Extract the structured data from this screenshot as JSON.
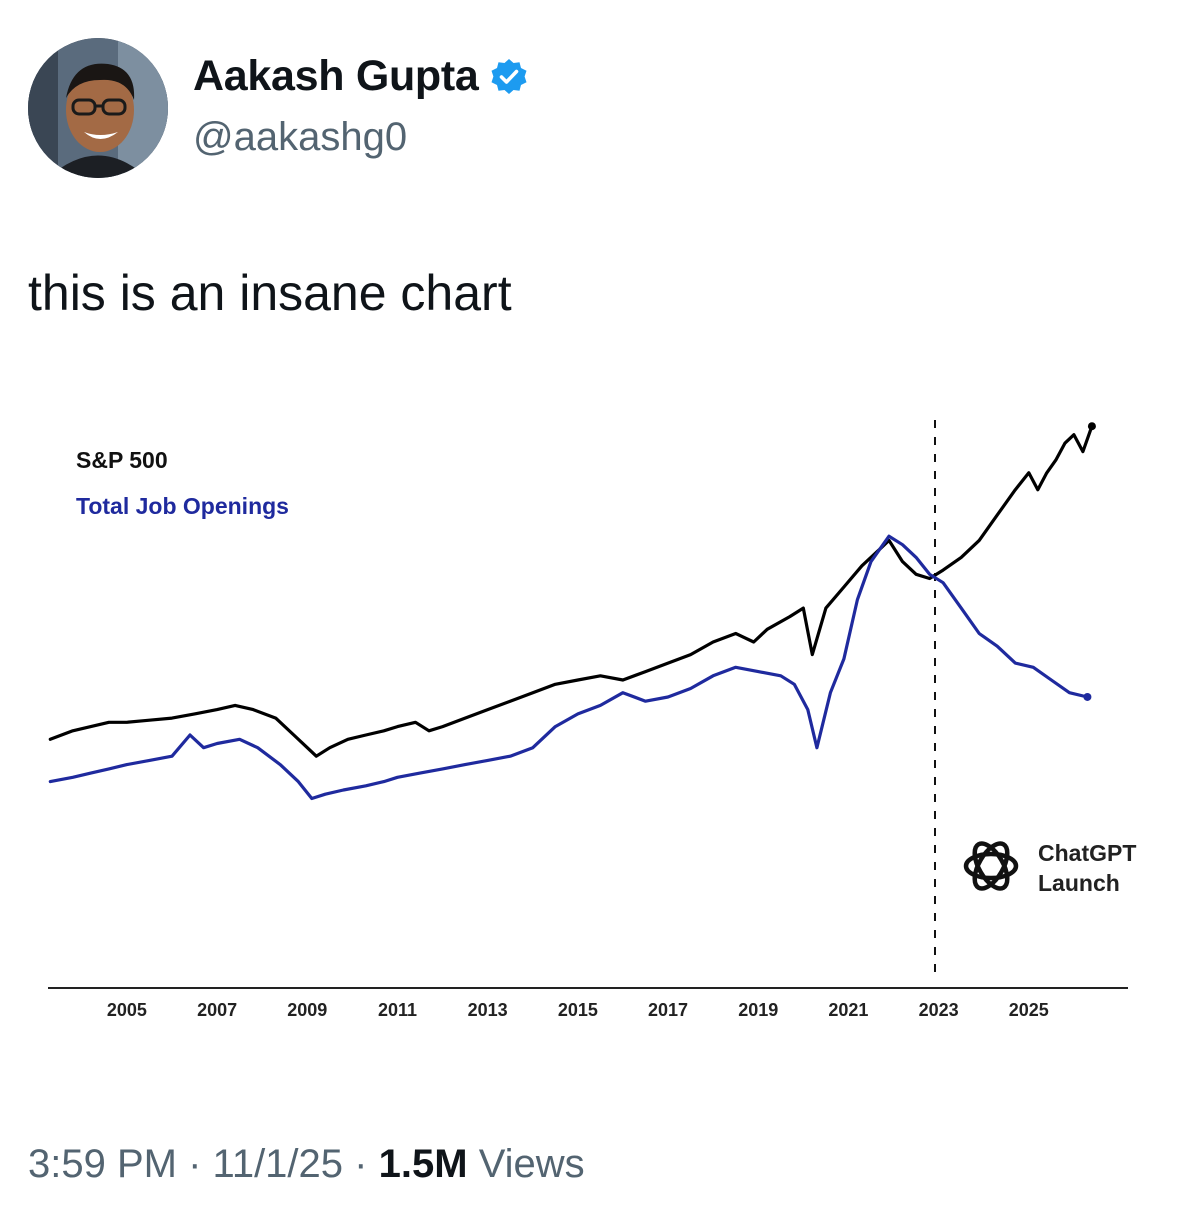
{
  "author": {
    "name": "Aakash Gupta",
    "handle": "@aakashg0",
    "verified": true,
    "verified_icon": "verified-badge-icon",
    "verified_color": "#1d9bf0"
  },
  "tweet": {
    "text": "this is an insane chart"
  },
  "meta": {
    "time": "3:59 PM",
    "separator": "·",
    "date": "11/1/25",
    "views_count": "1.5M",
    "views_label": "Views"
  },
  "annotation": {
    "icon": "openai-logo-icon",
    "line1": "ChatGPT",
    "line2": "Launch",
    "x": 2022.92
  },
  "chart_data": {
    "type": "line",
    "title": "",
    "xlabel": "",
    "ylabel": "",
    "xlim": [
      2003.25,
      2027.2
    ],
    "ylim": [
      0,
      100
    ],
    "x_ticks": [
      "2005",
      "2007",
      "2009",
      "2011",
      "2013",
      "2015",
      "2017",
      "2019",
      "2021",
      "2023",
      "2025"
    ],
    "grid": false,
    "legend_position": "top-left",
    "series": [
      {
        "name": "S&P 500",
        "color": "#000000",
        "points": [
          [
            2003.3,
            25
          ],
          [
            2003.8,
            27
          ],
          [
            2004.2,
            28
          ],
          [
            2004.6,
            29
          ],
          [
            2005.0,
            29
          ],
          [
            2005.5,
            29.5
          ],
          [
            2006.0,
            30
          ],
          [
            2006.5,
            31
          ],
          [
            2007.0,
            32
          ],
          [
            2007.4,
            33
          ],
          [
            2007.8,
            32
          ],
          [
            2008.3,
            30
          ],
          [
            2008.7,
            26
          ],
          [
            2009.0,
            23
          ],
          [
            2009.2,
            21
          ],
          [
            2009.5,
            23
          ],
          [
            2009.9,
            25
          ],
          [
            2010.3,
            26
          ],
          [
            2010.7,
            27
          ],
          [
            2011.0,
            28
          ],
          [
            2011.4,
            29
          ],
          [
            2011.7,
            27
          ],
          [
            2012.0,
            28
          ],
          [
            2012.5,
            30
          ],
          [
            2013.0,
            32
          ],
          [
            2013.5,
            34
          ],
          [
            2014.0,
            36
          ],
          [
            2014.5,
            38
          ],
          [
            2015.0,
            39
          ],
          [
            2015.5,
            40
          ],
          [
            2016.0,
            39
          ],
          [
            2016.5,
            41
          ],
          [
            2017.0,
            43
          ],
          [
            2017.5,
            45
          ],
          [
            2018.0,
            48
          ],
          [
            2018.5,
            50
          ],
          [
            2018.9,
            48
          ],
          [
            2019.2,
            51
          ],
          [
            2019.7,
            54
          ],
          [
            2020.0,
            56
          ],
          [
            2020.2,
            45
          ],
          [
            2020.5,
            56
          ],
          [
            2020.9,
            61
          ],
          [
            2021.3,
            66
          ],
          [
            2021.7,
            70
          ],
          [
            2021.9,
            72
          ],
          [
            2022.2,
            67
          ],
          [
            2022.5,
            64
          ],
          [
            2022.8,
            63
          ],
          [
            2023.1,
            65
          ],
          [
            2023.5,
            68
          ],
          [
            2023.9,
            72
          ],
          [
            2024.3,
            78
          ],
          [
            2024.7,
            84
          ],
          [
            2025.0,
            88
          ],
          [
            2025.2,
            84
          ],
          [
            2025.4,
            88
          ],
          [
            2025.6,
            91
          ],
          [
            2025.8,
            95
          ],
          [
            2026.0,
            97
          ],
          [
            2026.2,
            93
          ],
          [
            2026.4,
            99
          ]
        ]
      },
      {
        "name": "Total Job Openings",
        "color": "#1f2a9e",
        "points": [
          [
            2003.3,
            15
          ],
          [
            2003.8,
            16
          ],
          [
            2004.2,
            17
          ],
          [
            2004.6,
            18
          ],
          [
            2005.0,
            19
          ],
          [
            2005.5,
            20
          ],
          [
            2006.0,
            21
          ],
          [
            2006.4,
            26
          ],
          [
            2006.7,
            23
          ],
          [
            2007.0,
            24
          ],
          [
            2007.5,
            25
          ],
          [
            2007.9,
            23
          ],
          [
            2008.4,
            19
          ],
          [
            2008.8,
            15
          ],
          [
            2009.1,
            11
          ],
          [
            2009.4,
            12
          ],
          [
            2009.8,
            13
          ],
          [
            2010.3,
            14
          ],
          [
            2010.7,
            15
          ],
          [
            2011.0,
            16
          ],
          [
            2011.5,
            17
          ],
          [
            2012.0,
            18
          ],
          [
            2012.5,
            19
          ],
          [
            2013.0,
            20
          ],
          [
            2013.5,
            21
          ],
          [
            2014.0,
            23
          ],
          [
            2014.5,
            28
          ],
          [
            2015.0,
            31
          ],
          [
            2015.5,
            33
          ],
          [
            2016.0,
            36
          ],
          [
            2016.5,
            34
          ],
          [
            2017.0,
            35
          ],
          [
            2017.5,
            37
          ],
          [
            2018.0,
            40
          ],
          [
            2018.5,
            42
          ],
          [
            2019.0,
            41
          ],
          [
            2019.5,
            40
          ],
          [
            2019.8,
            38
          ],
          [
            2020.1,
            32
          ],
          [
            2020.3,
            23
          ],
          [
            2020.6,
            36
          ],
          [
            2020.9,
            44
          ],
          [
            2021.2,
            58
          ],
          [
            2021.5,
            67
          ],
          [
            2021.9,
            73
          ],
          [
            2022.2,
            71
          ],
          [
            2022.5,
            68
          ],
          [
            2022.8,
            64
          ],
          [
            2023.1,
            62
          ],
          [
            2023.5,
            56
          ],
          [
            2023.9,
            50
          ],
          [
            2024.3,
            47
          ],
          [
            2024.7,
            43
          ],
          [
            2025.1,
            42
          ],
          [
            2025.5,
            39
          ],
          [
            2025.9,
            36
          ],
          [
            2026.3,
            35
          ]
        ]
      }
    ]
  }
}
